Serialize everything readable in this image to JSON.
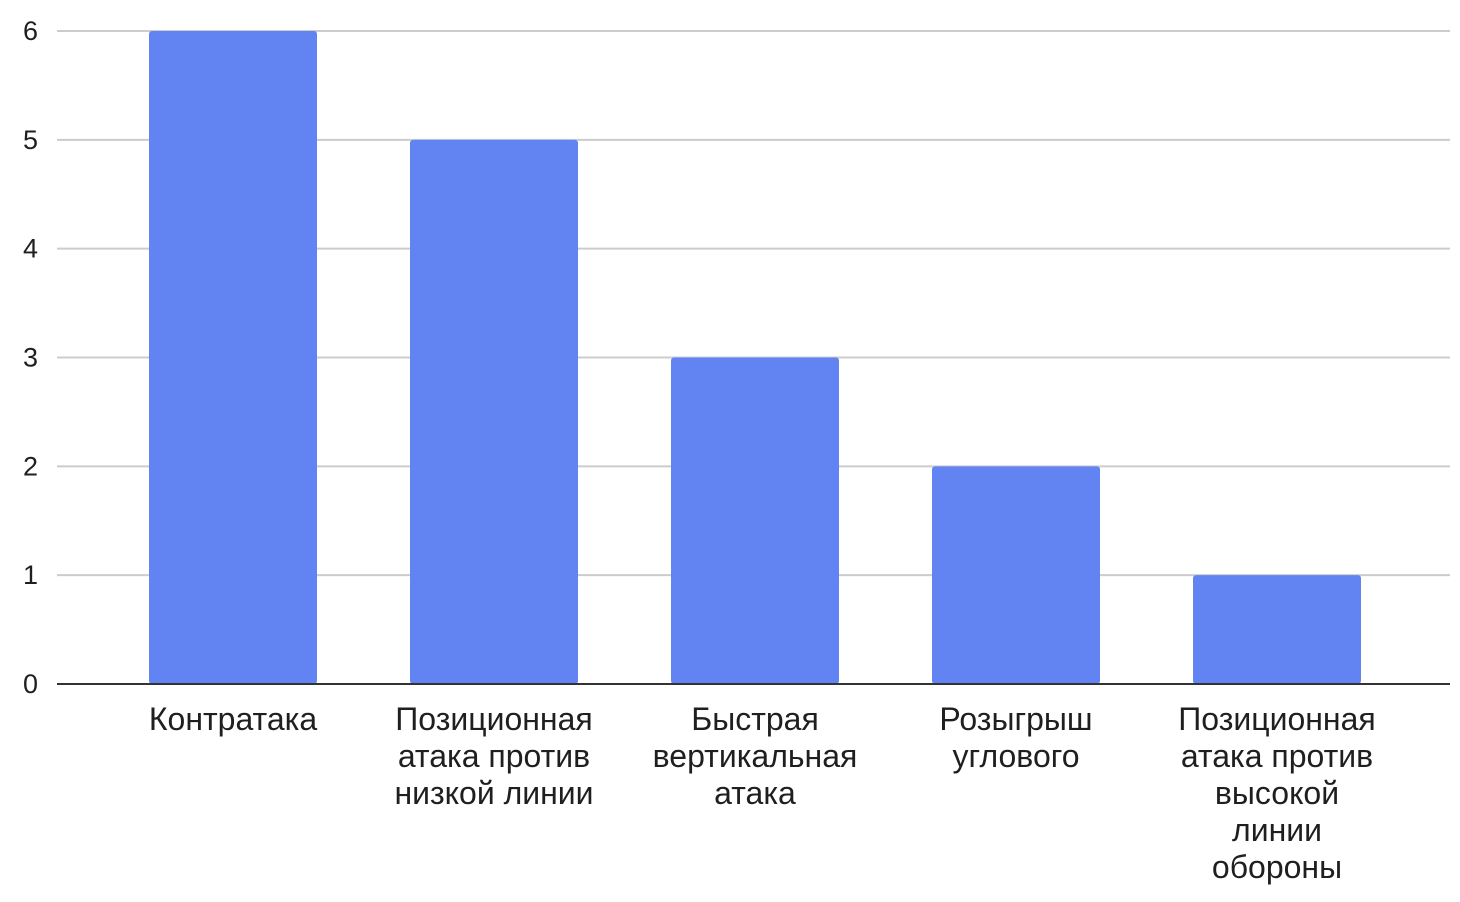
{
  "chart_data": {
    "type": "bar",
    "categories": [
      [
        "Контратака"
      ],
      [
        "Позиционная",
        "атака против",
        "низкой линии"
      ],
      [
        "Быстрая",
        "вертикальная",
        "атака"
      ],
      [
        "Розыгрыш",
        "углового"
      ],
      [
        "Позиционная",
        "атака против",
        "высокой",
        "линии",
        "обороны"
      ]
    ],
    "values": [
      6,
      5,
      3,
      2,
      1
    ],
    "title": "",
    "xlabel": "",
    "ylabel": "",
    "ylim": [
      0,
      6
    ],
    "yticks": [
      "0",
      "1",
      "2",
      "3",
      "4",
      "5",
      "6"
    ],
    "grid": true,
    "legend": "none",
    "colors": {
      "bar": "#6283f2",
      "grid": "#cccccc",
      "axis": "#333333",
      "text": "#1f1f1f"
    }
  }
}
